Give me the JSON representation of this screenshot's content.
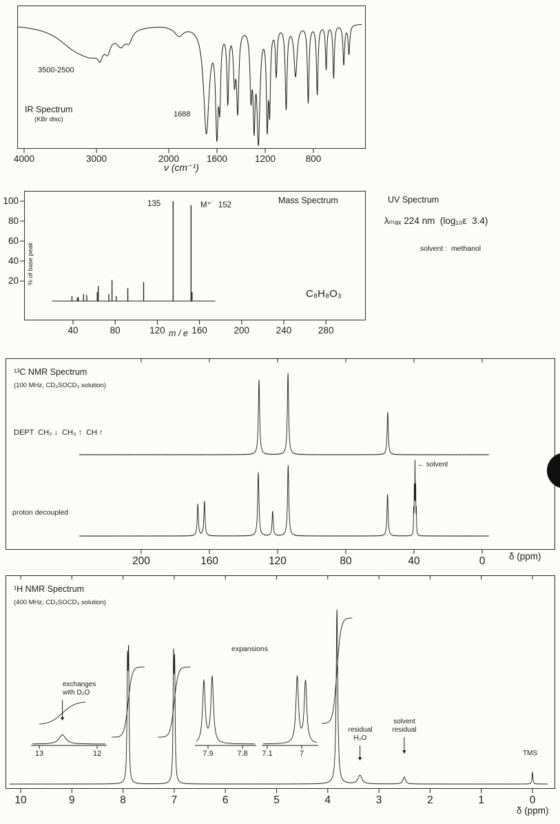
{
  "page": {
    "bg": "#fcfcfa",
    "ink": "#1b1b1b"
  },
  "ms": {
    "molecular_ion_label": "M⁺˙  152"
  },
  "uv": {
    "title": "UV Spectrum",
    "lambda_line": "λₘₐₓ 224 nm  (log₁₀ε  3.4)",
    "solvent_line": "solvent :  methanol"
  },
  "c13": {
    "dept_label": "DEPT  CH₂ ↓  CH₃ ↑  CH ↑",
    "solvent_label": "← solvent"
  },
  "h1": {
    "expansions_label": "expansions",
    "exchange_line1": "exchanges",
    "exchange_line2": "with D₂O",
    "water_line1": "residual",
    "water_line2": "H₂O",
    "solvent_line1": "solvent",
    "solvent_line2": "residual",
    "tms_label": "TMS"
  },
  "chart_data": [
    {
      "id": "ir",
      "type": "line",
      "title": "IR Spectrum",
      "sample_prep": "(KBr disc)",
      "xlabel": "ν (cm⁻¹)",
      "x_ticks": [
        4000,
        3000,
        2000,
        1600,
        1200,
        800
      ],
      "x_range": [
        4000,
        400
      ],
      "x_axis_note": "wavenumber axis reversed, compressed above 2000 cm-1",
      "y_unit": "% transmittance",
      "baseline_percentT": 95,
      "annotated_bands": [
        "3500-2500",
        "1688"
      ],
      "peak_format": "[cm-1, dip depth in %T, half-width cm-1]",
      "peaks_cm1": [
        [
          3300,
          14,
          300
        ],
        [
          3050,
          16,
          220
        ],
        [
          2950,
          8,
          40
        ],
        [
          2845,
          9,
          45
        ],
        [
          2660,
          10,
          70
        ],
        [
          2550,
          8,
          50
        ],
        [
          1915,
          7,
          45
        ],
        [
          1688,
          80,
          28
        ],
        [
          1601,
          74,
          13
        ],
        [
          1577,
          46,
          9
        ],
        [
          1510,
          54,
          9
        ],
        [
          1455,
          36,
          11
        ],
        [
          1428,
          60,
          11
        ],
        [
          1318,
          46,
          10
        ],
        [
          1292,
          64,
          10
        ],
        [
          1256,
          84,
          15
        ],
        [
          1183,
          70,
          9
        ],
        [
          1163,
          56,
          8
        ],
        [
          1108,
          36,
          8
        ],
        [
          1026,
          62,
          9
        ],
        [
          948,
          38,
          15
        ],
        [
          843,
          58,
          8
        ],
        [
          768,
          52,
          8
        ],
        [
          694,
          33,
          7
        ],
        [
          632,
          40,
          7
        ],
        [
          548,
          30,
          8
        ],
        [
          505,
          22,
          8
        ]
      ]
    },
    {
      "id": "ms",
      "type": "sticks",
      "title": "Mass Spectrum",
      "xlabel": "m / e",
      "ylabel": "% of base peak",
      "x_ticks": [
        40,
        80,
        120,
        160,
        200,
        240,
        280
      ],
      "y_ticks": [
        20,
        40,
        60,
        80,
        100
      ],
      "base_peak_mz": 135,
      "molecular_ion_mz": 152,
      "formula": "C₈H₈O₃",
      "peak_format": "[m/z, % of base peak]",
      "peaks_mz": [
        [
          39,
          5
        ],
        [
          44,
          3
        ],
        [
          45,
          4
        ],
        [
          50,
          7
        ],
        [
          53,
          6
        ],
        [
          63,
          9
        ],
        [
          64,
          15
        ],
        [
          74,
          7
        ],
        [
          77,
          21
        ],
        [
          81,
          5
        ],
        [
          92,
          13
        ],
        [
          107,
          19
        ],
        [
          135,
          100
        ],
        [
          152,
          96
        ],
        [
          153,
          9
        ]
      ]
    },
    {
      "id": "uv",
      "type": "text",
      "title": "UV Spectrum",
      "lambda_max_nm": 224,
      "log10_epsilon": 3.4,
      "solvent": "methanol"
    },
    {
      "id": "c13",
      "type": "nmr",
      "title": "¹³C NMR Spectrum",
      "conditions": "(100 MHz, CD₃SOCD₃ solution)",
      "axis_label": "δ (ppm)",
      "x_ticks": [
        200,
        160,
        120,
        80,
        40,
        0
      ],
      "x_range": [
        236,
        -4
      ],
      "solvent_ppm": 39.4,
      "peak_format": "[ppm, relative height, half-width ppm]",
      "traces": [
        {
          "name": "DEPT",
          "peaks_ppm": [
            [
              130.9,
              0.92,
              0.45
            ],
            [
              113.9,
              1.0,
              0.45
            ],
            [
              55.4,
              0.52,
              0.4
            ]
          ]
        },
        {
          "name": "proton decoupled",
          "peaks_ppm": [
            [
              166.8,
              0.45,
              0.4
            ],
            [
              162.9,
              0.49,
              0.4
            ],
            [
              131.3,
              0.9,
              0.45
            ],
            [
              122.9,
              0.35,
              0.4
            ],
            [
              113.8,
              1.0,
              0.45
            ],
            [
              55.5,
              0.59,
              0.4
            ],
            [
              38.6,
              0.33,
              0.13
            ],
            [
              39.0,
              0.6,
              0.13
            ],
            [
              39.4,
              0.95,
              0.13
            ],
            [
              39.8,
              0.6,
              0.13
            ],
            [
              40.2,
              0.33,
              0.13
            ]
          ]
        }
      ]
    },
    {
      "id": "h1",
      "type": "nmr",
      "title": "¹H NMR Spectrum",
      "conditions": "(400 MHz, CD₃SOCD₃ solution)",
      "axis_label": "δ (ppm)",
      "x_ticks": [
        10,
        9,
        8,
        7,
        6,
        5,
        4,
        3,
        2,
        1,
        0
      ],
      "x_range": [
        10.2,
        -0.3
      ],
      "peak_format": "[ppm, relative height, half-width ppm]",
      "main_peaks_ppm": [
        [
          7.913,
          0.63,
          0.011
        ],
        [
          7.891,
          0.67,
          0.011
        ],
        [
          7.013,
          0.65,
          0.011
        ],
        [
          6.991,
          0.61,
          0.011
        ],
        [
          3.82,
          1.0,
          0.018
        ],
        [
          3.37,
          0.05,
          0.045
        ],
        [
          2.505,
          0.04,
          0.03
        ],
        [
          0.0,
          0.07,
          0.01
        ]
      ],
      "integral_steps": [
        {
          "center_ppm": 7.9,
          "units": 2
        },
        {
          "center_ppm": 7.0,
          "units": 2
        },
        {
          "center_ppm": 3.82,
          "units": 3
        },
        {
          "center_ppm": 12.6,
          "units": 1,
          "location": "inset"
        }
      ],
      "insets": [
        {
          "name": "oh-exchange",
          "x_ticks": [
            13,
            12
          ],
          "peaks_ppm": [
            [
              12.6,
              0.09,
              0.07
            ]
          ]
        },
        {
          "name": "expansion-7.9",
          "x_ticks": [
            7.9,
            7.8
          ],
          "peaks_ppm": [
            [
              7.912,
              0.58,
              0.0045
            ],
            [
              7.888,
              0.62,
              0.0045
            ]
          ]
        },
        {
          "name": "expansion-7.0",
          "x_ticks": [
            7.1,
            7.0
          ],
          "peaks_ppm": [
            [
              7.013,
              0.62,
              0.0045
            ],
            [
              6.989,
              0.58,
              0.0045
            ]
          ]
        }
      ]
    }
  ]
}
